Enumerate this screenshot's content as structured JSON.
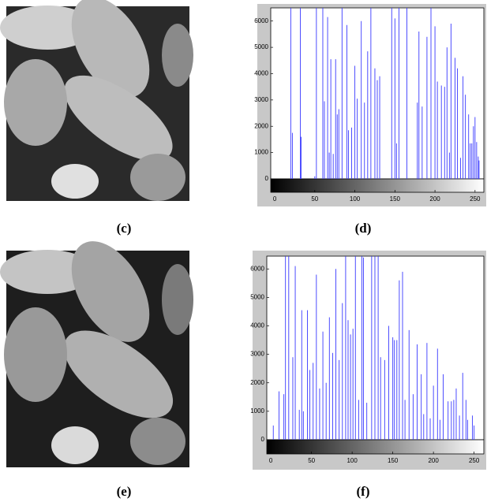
{
  "panel_labels": [
    "(c)",
    "(d)",
    "(e)",
    "(f)"
  ],
  "chart_data": [
    {
      "type": "stem",
      "color": "#3a3aff",
      "xlim": [
        -5,
        261
      ],
      "ylim": [
        0,
        6500
      ],
      "xticks": [
        0,
        50,
        100,
        150,
        200,
        250
      ],
      "yticks": [
        0,
        1000,
        2000,
        3000,
        4000,
        5000,
        6000
      ],
      "x": [
        20,
        22,
        32,
        33,
        50,
        52,
        60,
        62,
        66,
        68,
        70,
        73,
        76,
        78,
        80,
        84,
        90,
        92,
        96,
        100,
        103,
        108,
        112,
        116,
        120,
        125,
        128,
        131,
        146,
        150,
        152,
        155,
        165,
        178,
        180,
        184,
        190,
        195,
        200,
        203,
        208,
        212,
        215,
        218,
        220,
        225,
        228,
        232,
        235,
        238,
        242,
        244,
        246,
        248,
        250,
        252,
        254,
        255
      ],
      "values": [
        6500,
        1750,
        6500,
        1600,
        100,
        6500,
        6500,
        2950,
        6150,
        1000,
        4550,
        950,
        4550,
        2450,
        2650,
        6500,
        5850,
        1850,
        1950,
        4300,
        3050,
        6000,
        2900,
        4850,
        6500,
        4200,
        3750,
        3900,
        6500,
        6100,
        1350,
        6500,
        6500,
        2900,
        5600,
        2750,
        5400,
        6500,
        5800,
        3700,
        3550,
        3500,
        5000,
        1000,
        5900,
        4600,
        4200,
        800,
        3900,
        3200,
        2450,
        1350,
        1350,
        2000,
        2350,
        1400,
        850,
        700
      ]
    },
    {
      "type": "stem",
      "color": "#3a3aff",
      "xlim": [
        -5,
        262
      ],
      "ylim": [
        0,
        6450
      ],
      "xticks": [
        0,
        50,
        100,
        150,
        200,
        250
      ],
      "yticks": [
        0,
        1000,
        2000,
        3000,
        4000,
        5000,
        6000
      ],
      "x": [
        3,
        10,
        16,
        18,
        22,
        27,
        30,
        35,
        38,
        40,
        45,
        48,
        52,
        56,
        60,
        64,
        68,
        72,
        76,
        80,
        84,
        88,
        92,
        95,
        98,
        101,
        104,
        108,
        112,
        114,
        118,
        124,
        128,
        132,
        135,
        140,
        145,
        150,
        152,
        155,
        158,
        162,
        165,
        170,
        175,
        180,
        185,
        188,
        192,
        196,
        200,
        205,
        208,
        212,
        218,
        222,
        225,
        228,
        232,
        236,
        240,
        242,
        248,
        250
      ],
      "values": [
        500,
        1700,
        1600,
        6450,
        6450,
        2900,
        6100,
        1050,
        4550,
        1000,
        4550,
        2450,
        2700,
        5800,
        1800,
        3800,
        2000,
        4300,
        3050,
        6000,
        2800,
        4800,
        6450,
        4200,
        3700,
        3900,
        6450,
        1400,
        6450,
        6400,
        1300,
        6450,
        6450,
        6450,
        2900,
        2800,
        4000,
        3600,
        3500,
        3500,
        5600,
        5900,
        1400,
        3850,
        1600,
        3350,
        2300,
        900,
        3400,
        750,
        1900,
        3200,
        700,
        2300,
        1350,
        1350,
        1400,
        1800,
        850,
        2350,
        1400,
        700,
        850,
        500
      ]
    }
  ]
}
